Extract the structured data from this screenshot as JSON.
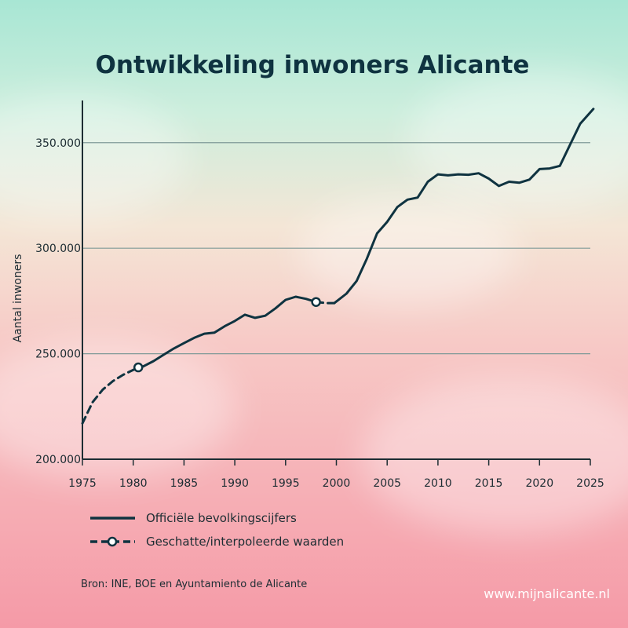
{
  "title": "Ontwikkeling inwoners Alicante",
  "website": "www.mijnalicante.nl",
  "source": "Bron: INE, BOE en Ayuntamiento de Alicante",
  "colors": {
    "line": "#0f3340",
    "grid": "#7f9a98",
    "axis": "#1d2d33"
  },
  "chart_data": {
    "type": "line",
    "title": "Ontwikkeling inwoners Alicante",
    "xlabel": "",
    "ylabel": "Aantal inwoners",
    "xlim": [
      1975,
      2025
    ],
    "ylim": [
      200000,
      370000
    ],
    "x_ticks": [
      1975,
      1980,
      1985,
      1990,
      1995,
      2000,
      2005,
      2010,
      2015,
      2020,
      2025
    ],
    "y_ticks": [
      200000,
      250000,
      300000,
      350000
    ],
    "y_tick_labels": [
      "200.000",
      "250.000",
      "300.000",
      "350.000"
    ],
    "grid": "horizontal",
    "legend_position": "bottom-left",
    "series": [
      {
        "name": "Officiële bevolkingscijfers",
        "style": "solid",
        "points": [
          [
            1981,
            244000
          ],
          [
            1982,
            246500
          ],
          [
            1983,
            249500
          ],
          [
            1984,
            252500
          ],
          [
            1985,
            255000
          ],
          [
            1986,
            257500
          ],
          [
            1987,
            259500
          ],
          [
            1988,
            260000
          ],
          [
            1989,
            263000
          ],
          [
            1990,
            265500
          ],
          [
            1991,
            268500
          ],
          [
            1992,
            267000
          ],
          [
            1993,
            268000
          ],
          [
            1994,
            271500
          ],
          [
            1995,
            275500
          ],
          [
            1996,
            277000
          ],
          [
            1997,
            276000
          ],
          [
            1998,
            274500
          ]
        ]
      },
      {
        "name": "Officiële bevolkingscijfers",
        "style": "solid",
        "points": [
          [
            1999.8,
            274000
          ],
          [
            2001,
            278500
          ],
          [
            2002,
            284500
          ],
          [
            2003,
            295000
          ],
          [
            2004,
            307000
          ],
          [
            2005,
            312500
          ],
          [
            2006,
            319500
          ],
          [
            2007,
            323000
          ],
          [
            2008,
            324000
          ],
          [
            2009,
            331500
          ],
          [
            2010,
            335000
          ],
          [
            2011,
            334500
          ],
          [
            2012,
            335000
          ],
          [
            2013,
            334800
          ],
          [
            2014,
            335500
          ],
          [
            2015,
            333000
          ],
          [
            2016,
            329500
          ],
          [
            2017,
            331500
          ],
          [
            2018,
            331000
          ],
          [
            2019,
            332500
          ],
          [
            2020,
            337500
          ],
          [
            2021,
            337800
          ],
          [
            2022,
            339000
          ],
          [
            2023,
            349000
          ],
          [
            2024,
            359000
          ],
          [
            2025.3,
            366000
          ]
        ]
      },
      {
        "name": "Geschatte/interpoleerde waarden",
        "style": "dashed",
        "points": [
          [
            1975,
            217000
          ],
          [
            1976,
            227000
          ],
          [
            1977,
            233000
          ],
          [
            1978,
            237000
          ],
          [
            1979,
            240000
          ],
          [
            1980.5,
            243500
          ],
          [
            1981,
            244000
          ]
        ],
        "markers": [
          [
            1980.5,
            243500
          ]
        ]
      },
      {
        "name": "Geschatte/interpoleerde waarden",
        "style": "dashed",
        "points": [
          [
            1998,
            274500
          ],
          [
            1999,
            274000
          ],
          [
            1999.8,
            274000
          ]
        ],
        "markers": [
          [
            1998,
            274500
          ]
        ]
      }
    ],
    "legend": [
      {
        "label": "Officiële bevolkingscijfers",
        "style": "solid"
      },
      {
        "label": "Geschatte/interpoleerde waarden",
        "style": "dashed"
      }
    ]
  }
}
